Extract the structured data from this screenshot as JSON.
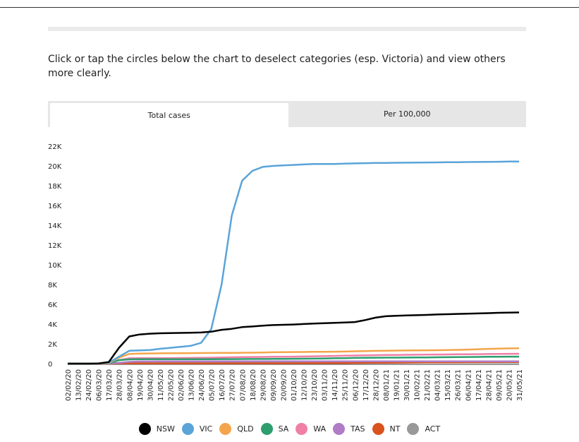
{
  "intro_text": "Click or tap the circles below the chart to deselect categories (esp. Victoria) and view others more clearly.",
  "tabs": [
    {
      "label": "Total cases",
      "active": true
    },
    {
      "label": "Per 100,000",
      "active": false
    }
  ],
  "chart_data": {
    "type": "line",
    "x_tick_labels": [
      "02/02/20",
      "13/02/20",
      "24/02/20",
      "06/03/20",
      "17/03/20",
      "28/03/20",
      "08/04/20",
      "19/04/20",
      "30/04/20",
      "11/05/20",
      "22/05/20",
      "02/06/20",
      "13/06/20",
      "24/06/20",
      "05/07/20",
      "16/07/20",
      "27/07/20",
      "07/08/20",
      "18/08/20",
      "29/08/20",
      "09/09/20",
      "20/09/20",
      "01/10/20",
      "12/10/20",
      "23/10/20",
      "03/11/20",
      "14/11/20",
      "25/11/20",
      "06/12/20",
      "17/12/20",
      "28/12/20",
      "08/01/21",
      "19/01/21",
      "30/01/21",
      "10/02/21",
      "21/02/21",
      "04/03/21",
      "15/03/21",
      "26/03/21",
      "06/04/21",
      "17/04/21",
      "28/04/21",
      "09/05/21",
      "20/05/21",
      "31/05/21"
    ],
    "y_tick_labels": [
      "0",
      "2K",
      "4K",
      "6K",
      "8K",
      "10K",
      "12K",
      "14K",
      "16K",
      "18K",
      "20K",
      "22K"
    ],
    "ylim": [
      0,
      22000
    ],
    "series": [
      {
        "name": "NSW",
        "color": "#000000",
        "values": [
          0,
          0,
          0,
          20,
          160,
          1600,
          2750,
          2950,
          3030,
          3070,
          3090,
          3110,
          3120,
          3150,
          3230,
          3420,
          3520,
          3690,
          3760,
          3840,
          3900,
          3930,
          3960,
          4010,
          4050,
          4090,
          4120,
          4160,
          4210,
          4410,
          4650,
          4790,
          4840,
          4870,
          4900,
          4930,
          4970,
          5000,
          5030,
          5060,
          5080,
          5110,
          5140,
          5160,
          5180
        ]
      },
      {
        "name": "VIC",
        "color": "#5aa4d8",
        "values": [
          0,
          0,
          0,
          20,
          100,
          700,
          1300,
          1340,
          1380,
          1500,
          1600,
          1700,
          1800,
          2100,
          3500,
          8000,
          15000,
          18500,
          19500,
          19900,
          20000,
          20050,
          20100,
          20150,
          20200,
          20200,
          20200,
          20230,
          20260,
          20280,
          20300,
          20310,
          20320,
          20330,
          20340,
          20350,
          20360,
          20370,
          20380,
          20390,
          20400,
          20410,
          20420,
          20440,
          20450
        ]
      },
      {
        "name": "QLD",
        "color": "#f4a54b",
        "values": [
          0,
          0,
          0,
          10,
          50,
          600,
          980,
          1020,
          1030,
          1040,
          1050,
          1060,
          1065,
          1070,
          1080,
          1085,
          1090,
          1100,
          1110,
          1130,
          1150,
          1160,
          1170,
          1180,
          1190,
          1200,
          1210,
          1220,
          1250,
          1270,
          1290,
          1310,
          1320,
          1330,
          1340,
          1350,
          1360,
          1370,
          1390,
          1420,
          1460,
          1490,
          1520,
          1540,
          1560
        ]
      },
      {
        "name": "SA",
        "color": "#2e9e6e",
        "values": [
          0,
          0,
          0,
          5,
          30,
          350,
          430,
          440,
          440,
          440,
          440,
          440,
          443,
          445,
          450,
          455,
          460,
          465,
          470,
          475,
          480,
          485,
          490,
          500,
          510,
          520,
          540,
          560,
          580,
          590,
          600,
          605,
          610,
          615,
          620,
          630,
          640,
          650,
          660,
          670,
          680,
          690,
          700,
          705,
          710
        ]
      },
      {
        "name": "WA",
        "color": "#f07fa6",
        "values": [
          0,
          0,
          0,
          5,
          40,
          350,
          545,
          550,
          555,
          557,
          560,
          570,
          580,
          590,
          600,
          620,
          640,
          660,
          670,
          680,
          690,
          700,
          710,
          720,
          740,
          760,
          780,
          800,
          820,
          840,
          860,
          870,
          880,
          890,
          900,
          910,
          920,
          930,
          940,
          950,
          960,
          970,
          980,
          990,
          1000
        ]
      },
      {
        "name": "TAS",
        "color": "#b07cc6",
        "values": [
          0,
          0,
          0,
          2,
          10,
          80,
          180,
          220,
          225,
          228,
          228,
          228,
          228,
          228,
          229,
          230,
          230,
          230,
          230,
          230,
          230,
          230,
          230,
          230,
          230,
          230,
          230,
          232,
          233,
          234,
          234,
          234,
          234,
          234,
          234,
          234,
          234,
          234,
          234,
          234,
          234,
          234,
          234,
          234,
          234
        ]
      },
      {
        "name": "NT",
        "color": "#d9531e",
        "values": [
          0,
          0,
          0,
          0,
          2,
          15,
          28,
          29,
          29,
          29,
          29,
          30,
          30,
          31,
          32,
          33,
          33,
          33,
          33,
          34,
          34,
          35,
          36,
          40,
          45,
          50,
          55,
          60,
          70,
          80,
          90,
          95,
          100,
          110,
          115,
          120,
          125,
          130,
          135,
          140,
          150,
          160,
          165,
          170,
          175
        ]
      },
      {
        "name": "ACT",
        "color": "#999999",
        "values": [
          0,
          0,
          0,
          1,
          5,
          60,
          100,
          105,
          106,
          107,
          107,
          108,
          109,
          110,
          112,
          113,
          113,
          113,
          113,
          113,
          113,
          114,
          114,
          114,
          115,
          115,
          116,
          117,
          118,
          118,
          118,
          118,
          118,
          118,
          118,
          120,
          122,
          123,
          123,
          123,
          124,
          124,
          124,
          124,
          124
        ]
      }
    ]
  }
}
